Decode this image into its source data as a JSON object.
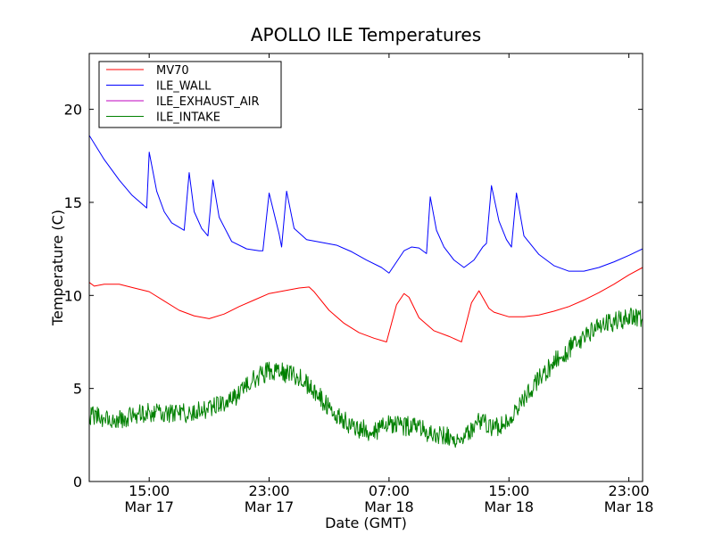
{
  "chart_data": {
    "type": "line",
    "title": "APOLLO ILE Temperatures",
    "xlabel": "Date (GMT)",
    "ylabel": "Temperature (C)",
    "xlim": [
      "2014-03-17T11:00",
      "2014-03-18T23:55"
    ],
    "ylim": [
      0,
      23
    ],
    "grid": false,
    "legend_position": "upper-left",
    "yticks": [
      0,
      5,
      10,
      15,
      20
    ],
    "xticks": [
      {
        "line1": "15:00",
        "line2": "Mar 17",
        "t": "2014-03-17T15:00"
      },
      {
        "line1": "23:00",
        "line2": "Mar 17",
        "t": "2014-03-17T23:00"
      },
      {
        "line1": "07:00",
        "line2": "Mar 18",
        "t": "2014-03-18T07:00"
      },
      {
        "line1": "15:00",
        "line2": "Mar 18",
        "t": "2014-03-18T15:00"
      },
      {
        "line1": "23:00",
        "line2": "Mar 18",
        "t": "2014-03-18T23:00"
      }
    ],
    "series": [
      {
        "name": "MV70",
        "color": "#ff0000",
        "x": [
          "2014-03-17T11:00",
          "2014-03-17T11:20",
          "2014-03-17T12:00",
          "2014-03-17T13:00",
          "2014-03-17T14:00",
          "2014-03-17T15:00",
          "2014-03-17T16:00",
          "2014-03-17T17:00",
          "2014-03-17T18:00",
          "2014-03-17T19:00",
          "2014-03-17T20:00",
          "2014-03-17T21:00",
          "2014-03-17T22:00",
          "2014-03-17T23:00",
          "2014-03-18T00:00",
          "2014-03-18T01:00",
          "2014-03-18T01:40",
          "2014-03-18T02:00",
          "2014-03-18T03:00",
          "2014-03-18T04:00",
          "2014-03-18T05:00",
          "2014-03-18T06:00",
          "2014-03-18T06:50",
          "2014-03-18T07:30",
          "2014-03-18T08:00",
          "2014-03-18T08:20",
          "2014-03-18T09:00",
          "2014-03-18T10:00",
          "2014-03-18T11:00",
          "2014-03-18T11:50",
          "2014-03-18T12:30",
          "2014-03-18T13:00",
          "2014-03-18T13:40",
          "2014-03-18T14:00",
          "2014-03-18T15:00",
          "2014-03-18T16:00",
          "2014-03-18T17:00",
          "2014-03-18T18:00",
          "2014-03-18T19:00",
          "2014-03-18T20:00",
          "2014-03-18T21:00",
          "2014-03-18T22:00",
          "2014-03-18T23:00",
          "2014-03-18T23:55"
        ],
        "y": [
          10.7,
          10.5,
          10.6,
          10.6,
          10.4,
          10.2,
          9.7,
          9.2,
          8.9,
          8.75,
          9.0,
          9.4,
          9.75,
          10.1,
          10.25,
          10.4,
          10.45,
          10.2,
          9.2,
          8.5,
          8.0,
          7.7,
          7.5,
          9.5,
          10.1,
          9.9,
          8.8,
          8.1,
          7.8,
          7.5,
          9.6,
          10.25,
          9.3,
          9.1,
          8.85,
          8.85,
          8.95,
          9.15,
          9.4,
          9.75,
          10.15,
          10.6,
          11.1,
          11.5
        ]
      },
      {
        "name": "ILE_WALL",
        "color": "#0000ff",
        "x": [
          "2014-03-17T11:00",
          "2014-03-17T12:00",
          "2014-03-17T13:00",
          "2014-03-17T13:50",
          "2014-03-17T14:50",
          "2014-03-17T15:00",
          "2014-03-17T15:30",
          "2014-03-17T16:00",
          "2014-03-17T16:30",
          "2014-03-17T17:20",
          "2014-03-17T17:40",
          "2014-03-17T18:00",
          "2014-03-17T18:30",
          "2014-03-17T18:55",
          "2014-03-17T19:15",
          "2014-03-17T19:40",
          "2014-03-17T20:30",
          "2014-03-17T21:30",
          "2014-03-17T22:20",
          "2014-03-17T22:35",
          "2014-03-17T23:00",
          "2014-03-17T23:40",
          "2014-03-17T23:50",
          "2014-03-18T00:10",
          "2014-03-18T00:40",
          "2014-03-18T01:30",
          "2014-03-18T02:30",
          "2014-03-18T03:30",
          "2014-03-18T04:30",
          "2014-03-18T05:30",
          "2014-03-18T06:30",
          "2014-03-18T07:00",
          "2014-03-18T07:30",
          "2014-03-18T08:00",
          "2014-03-18T08:30",
          "2014-03-18T09:00",
          "2014-03-18T09:30",
          "2014-03-18T09:45",
          "2014-03-18T10:10",
          "2014-03-18T10:40",
          "2014-03-18T11:20",
          "2014-03-18T12:00",
          "2014-03-18T12:40",
          "2014-03-18T13:15",
          "2014-03-18T13:30",
          "2014-03-18T13:50",
          "2014-03-18T14:20",
          "2014-03-18T14:50",
          "2014-03-18T15:10",
          "2014-03-18T15:30",
          "2014-03-18T16:00",
          "2014-03-18T17:00",
          "2014-03-18T18:00",
          "2014-03-18T19:00",
          "2014-03-18T20:00",
          "2014-03-18T21:00",
          "2014-03-18T22:00",
          "2014-03-18T23:00",
          "2014-03-18T23:55"
        ],
        "y": [
          18.6,
          17.3,
          16.2,
          15.4,
          14.7,
          17.7,
          15.6,
          14.5,
          13.9,
          13.5,
          16.6,
          14.5,
          13.6,
          13.2,
          16.2,
          14.2,
          12.9,
          12.5,
          12.4,
          12.4,
          15.5,
          13.3,
          12.6,
          15.6,
          13.6,
          13.0,
          12.85,
          12.7,
          12.35,
          11.9,
          11.5,
          11.2,
          11.8,
          12.4,
          12.6,
          12.55,
          12.25,
          15.3,
          13.5,
          12.6,
          11.9,
          11.5,
          11.9,
          12.6,
          12.8,
          15.9,
          14.0,
          13.0,
          12.6,
          15.5,
          13.2,
          12.2,
          11.6,
          11.3,
          11.3,
          11.5,
          11.8,
          12.15,
          12.5
        ]
      },
      {
        "name": "ILE_EXHAUST_AIR",
        "color": "#bf00bf",
        "x": [],
        "y": []
      },
      {
        "name": "ILE_INTAKE",
        "color": "#008000",
        "x": [
          "2014-03-17T11:00",
          "2014-03-17T13:00",
          "2014-03-17T15:00",
          "2014-03-17T17:00",
          "2014-03-17T19:00",
          "2014-03-17T21:00",
          "2014-03-17T22:00",
          "2014-03-17T23:00",
          "2014-03-18T00:00",
          "2014-03-18T01:00",
          "2014-03-18T02:00",
          "2014-03-18T03:00",
          "2014-03-18T04:00",
          "2014-03-18T05:00",
          "2014-03-18T06:00",
          "2014-03-18T07:00",
          "2014-03-18T08:00",
          "2014-03-18T09:00",
          "2014-03-18T10:00",
          "2014-03-18T11:00",
          "2014-03-18T12:00",
          "2014-03-18T13:00",
          "2014-03-18T14:00",
          "2014-03-18T15:00",
          "2014-03-18T16:00",
          "2014-03-18T17:00",
          "2014-03-18T18:00",
          "2014-03-18T19:00",
          "2014-03-18T20:00",
          "2014-03-18T21:00",
          "2014-03-18T22:00",
          "2014-03-18T23:00",
          "2014-03-18T23:55"
        ],
        "y": [
          3.5,
          3.4,
          3.7,
          3.6,
          3.9,
          4.7,
          5.5,
          6.0,
          5.8,
          5.6,
          4.9,
          4.0,
          3.3,
          2.8,
          2.7,
          3.1,
          3.0,
          2.8,
          2.6,
          2.4,
          2.3,
          3.3,
          2.9,
          3.3,
          4.4,
          5.5,
          6.4,
          7.1,
          7.8,
          8.3,
          8.6,
          8.8,
          8.8
        ]
      }
    ]
  }
}
